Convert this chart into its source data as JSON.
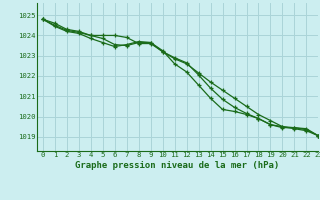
{
  "title": "Graphe pression niveau de la mer (hPa)",
  "background_color": "#cceef0",
  "grid_color": "#aad4d8",
  "line_color": "#1a6b1a",
  "text_color": "#1a6b1a",
  "xlim": [
    -0.5,
    23
  ],
  "ylim": [
    1018.3,
    1025.6
  ],
  "yticks": [
    1019,
    1020,
    1021,
    1022,
    1023,
    1024,
    1025
  ],
  "xticks": [
    0,
    1,
    2,
    3,
    4,
    5,
    6,
    7,
    8,
    9,
    10,
    11,
    12,
    13,
    14,
    15,
    16,
    17,
    18,
    19,
    20,
    21,
    22,
    23
  ],
  "series1": [
    1024.8,
    1024.6,
    1024.3,
    1024.2,
    1024.0,
    1024.0,
    1024.0,
    1023.9,
    1023.6,
    1023.6,
    1023.2,
    1022.85,
    1022.6,
    1022.15,
    1021.7,
    1021.3,
    1020.9,
    1020.5,
    1020.1,
    1019.8,
    1019.5,
    1019.4,
    1019.3,
    1019.05
  ],
  "series2": [
    1024.8,
    1024.5,
    1024.25,
    1024.15,
    1024.0,
    1023.85,
    1023.55,
    1023.5,
    1023.65,
    1023.65,
    1023.25,
    1022.6,
    1022.2,
    1021.55,
    1020.9,
    1020.35,
    1020.25,
    1020.1,
    1019.9,
    1019.6,
    1019.5,
    1019.45,
    1019.4,
    1019.05
  ],
  "series3": [
    1024.8,
    1024.45,
    1024.2,
    1024.1,
    1023.85,
    1023.65,
    1023.45,
    1023.55,
    1023.7,
    1023.65,
    1023.2,
    1022.9,
    1022.65,
    1022.05,
    1021.4,
    1020.85,
    1020.45,
    1020.15,
    1019.9,
    1019.6,
    1019.45,
    1019.45,
    1019.35,
    1019.05
  ],
  "marker_size": 3.5,
  "line_width": 0.9,
  "title_fontsize": 6.5,
  "tick_fontsize": 5.2
}
